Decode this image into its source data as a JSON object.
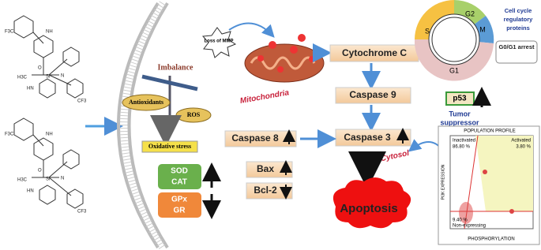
{
  "molecules": [
    {
      "labels": [
        "F3C",
        "NH",
        "O",
        "Si",
        "N",
        "CF3",
        "H3C",
        "HN"
      ]
    },
    {
      "labels": [
        "F3C",
        "NH",
        "O",
        "Si",
        "N",
        "CF3",
        "H3C",
        "HN"
      ]
    }
  ],
  "balance": {
    "title": "Imbalance",
    "left": "Antioxidants",
    "right": "ROS",
    "result": "Oxidative stress"
  },
  "enzymes": {
    "up": [
      "SOD",
      "CAT"
    ],
    "down": [
      "GPx",
      "GR"
    ]
  },
  "mito": {
    "burst": "Loss of MMP",
    "label": "Mitochondria"
  },
  "cascade": {
    "cytochrome": "Cytochrome C",
    "casp9": "Caspase 9",
    "casp8": "Caspase 8",
    "casp3": "Caspase 3",
    "bax": "Bax",
    "bcl2": "Bcl-2",
    "cytosol": "Cytosol",
    "apoptosis": "Apoptosis"
  },
  "cell_cycle": {
    "phases": [
      "S",
      "G2",
      "M",
      "G1"
    ],
    "title": "Cell cycle regulatory proteins",
    "arrest": "G0/G1 arrest"
  },
  "p53": {
    "label": "p53",
    "caption": [
      "Tumor",
      "suppressor"
    ]
  },
  "population": {
    "title": "POPULATION PROFILE",
    "inactivated": "Inactivated",
    "inactivated_pct": "86.80 %",
    "activated": "Activated",
    "activated_pct": "3.80 %",
    "non_pct": "9.40 %",
    "non": "Non-expressing",
    "y_label": "PI3K EXPRESSION",
    "x_label": "PHOSPHORYLATION"
  }
}
